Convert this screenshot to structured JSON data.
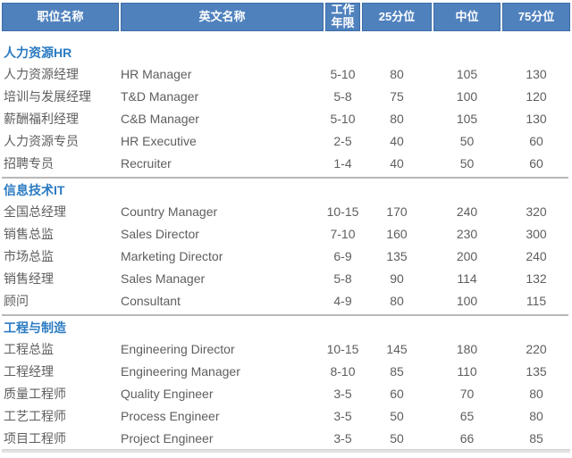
{
  "colors": {
    "header_bg": "#4f81bd",
    "header_border": "#3d6da6",
    "header_text": "#ffffff",
    "section_title": "#2b7bc2",
    "data_text": "#5e5e5e",
    "section_divider": "#b8b8b8",
    "bottom_bar": "#e2e2e2"
  },
  "table": {
    "columns": [
      {
        "key": "position",
        "label": "职位名称"
      },
      {
        "key": "english",
        "label": "英文名称"
      },
      {
        "key": "years",
        "label": "工作年限"
      },
      {
        "key": "p25",
        "label": "25分位"
      },
      {
        "key": "median",
        "label": "中位"
      },
      {
        "key": "p75",
        "label": "75分位"
      }
    ],
    "sections": [
      {
        "title": "人力资源HR",
        "rows": [
          [
            "人力资源经理",
            "HR Manager",
            "5-10",
            "80",
            "105",
            "130"
          ],
          [
            "培训与发展经理",
            "T&D Manager",
            "5-8",
            "75",
            "100",
            "120"
          ],
          [
            "薪酬福利经理",
            "C&B Manager",
            "5-10",
            "80",
            "105",
            "130"
          ],
          [
            "人力资源专员",
            "HR Executive",
            "2-5",
            "40",
            "50",
            "60"
          ],
          [
            "招聘专员",
            "Recruiter",
            "1-4",
            "40",
            "50",
            "60"
          ]
        ]
      },
      {
        "title": "信息技术IT",
        "rows": [
          [
            "全国总经理",
            "Country Manager",
            "10-15",
            "170",
            "240",
            "320"
          ],
          [
            "销售总监",
            "Sales Director",
            "7-10",
            "160",
            "230",
            "300"
          ],
          [
            "市场总监",
            "Marketing Director",
            "6-9",
            "135",
            "200",
            "240"
          ],
          [
            "销售经理",
            "Sales Manager",
            "5-8",
            "90",
            "114",
            "132"
          ],
          [
            "顾问",
            "Consultant",
            "4-9",
            "80",
            "100",
            "115"
          ]
        ]
      },
      {
        "title": "工程与制造",
        "rows": [
          [
            "工程总监",
            "Engineering Director",
            "10-15",
            "145",
            "180",
            "220"
          ],
          [
            "工程经理",
            "Engineering Manager",
            "8-10",
            "85",
            "110",
            "135"
          ],
          [
            "质量工程师",
            "Quality Engineer",
            "3-5",
            "60",
            "70",
            "80"
          ],
          [
            "工艺工程师",
            "Process Engineer",
            "3-5",
            "50",
            "65",
            "80"
          ],
          [
            "项目工程师",
            "Project Engineer",
            "3-5",
            "50",
            "66",
            "85"
          ]
        ]
      }
    ]
  }
}
